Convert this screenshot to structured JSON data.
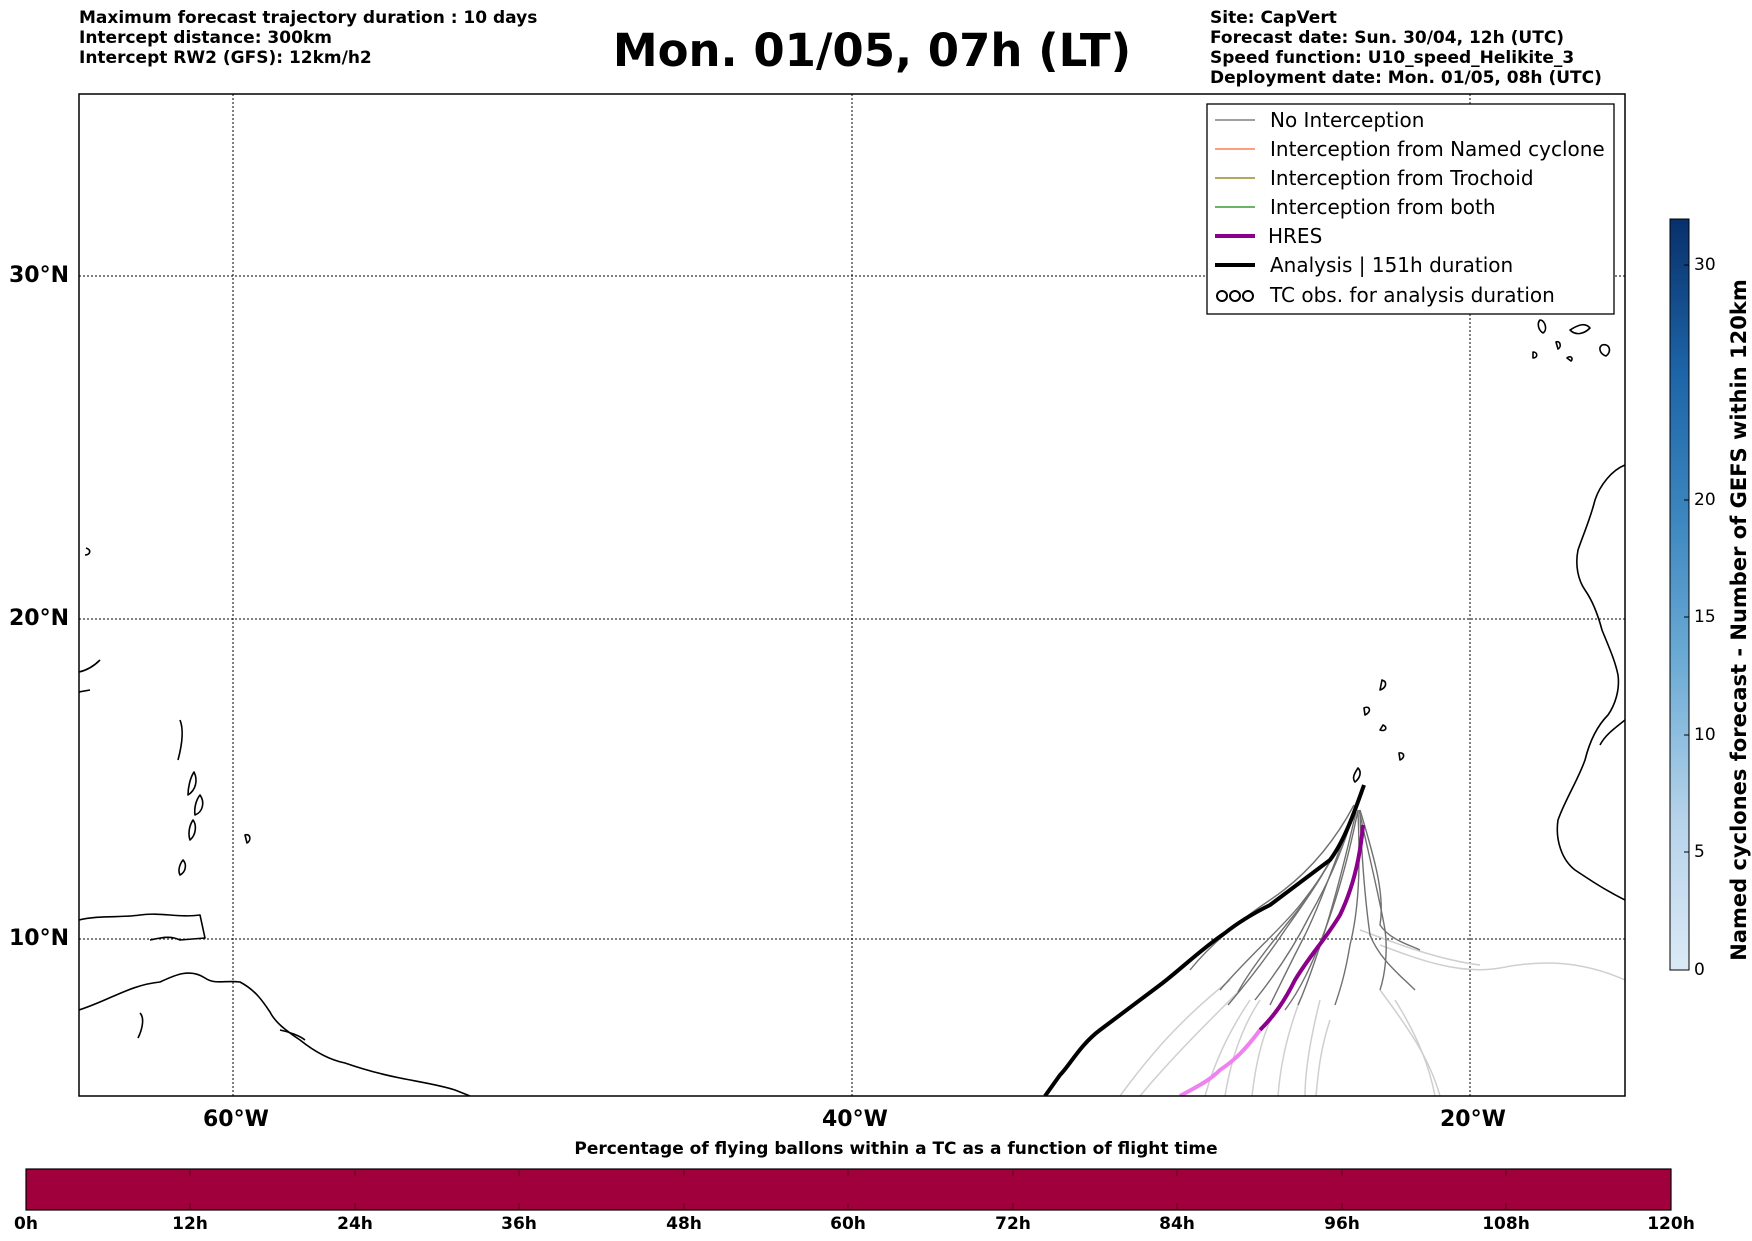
{
  "header": {
    "left": [
      "Maximum forecast trajectory duration : 10 days",
      "Intercept distance: 300km",
      "Intercept RW2 (GFS):  12km/h2"
    ],
    "title": "Mon. 01/05, 07h (LT)",
    "right": [
      "Site: CapVert",
      "Forecast date: Sun. 30/04, 12h (UTC)",
      "Speed function: U10_speed_Helikite_3",
      "Deployment date: Mon. 01/05, 08h (UTC)"
    ]
  },
  "map": {
    "lat_labels": [
      "30°N",
      "20°N",
      "10°N"
    ],
    "lon_labels": [
      "60°W",
      "40°W",
      "20°W"
    ],
    "legend": [
      {
        "label": "No Interception",
        "color": "#808080",
        "style": "thin"
      },
      {
        "label": "Interception from Named cyclone",
        "color": "#ff7f50",
        "style": "thin"
      },
      {
        "label": "Interception from Trochoid",
        "color": "#9a8b2f",
        "style": "thin"
      },
      {
        "label": "Interception from both",
        "color": "#3a9a3a",
        "style": "thin"
      },
      {
        "label": "HRES",
        "color": "#8b008b",
        "style": "medium"
      },
      {
        "label": "Analysis | 151h duration",
        "color": "#000000",
        "style": "thick"
      },
      {
        "label": "TC obs. for analysis duration",
        "color": "#000000",
        "style": "symbol"
      }
    ]
  },
  "colorbar": {
    "label": "Named cyclones forecast - Number of GEFS within 120km",
    "ticks": [
      "30",
      "20",
      "15",
      "10",
      "5",
      "0"
    ]
  },
  "percent_bar": {
    "title": "Percentage of flying ballons within a TC as a function of flight time",
    "color": "#a0003c",
    "ticks": [
      "0h",
      "12h",
      "24h",
      "36h",
      "48h",
      "60h",
      "72h",
      "84h",
      "96h",
      "108h",
      "120h"
    ]
  }
}
